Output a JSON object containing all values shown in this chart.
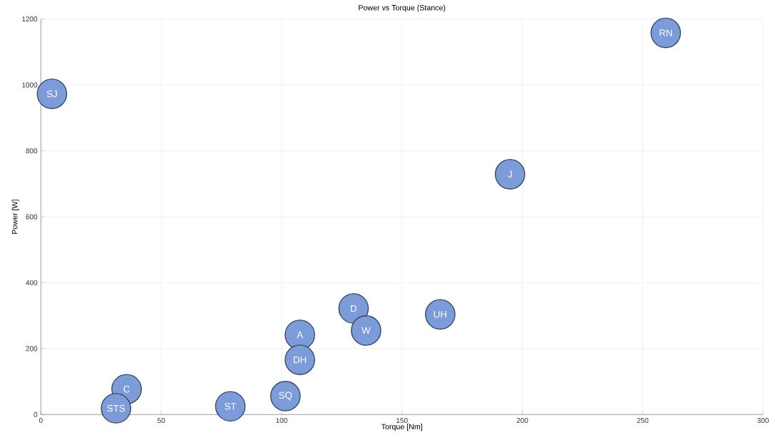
{
  "chart_data": {
    "type": "scatter",
    "title": "Power vs Torque (Stance)",
    "xlabel": "Torque [Nm]",
    "ylabel": "Power [W]",
    "x": [
      4.6,
      35.6,
      31.2,
      78.7,
      101.6,
      107.6,
      107.6,
      129.9,
      135.1,
      165.9,
      194.9,
      259.6
    ],
    "values": [
      973,
      77,
      19,
      25,
      56,
      242,
      166,
      322,
      255,
      304,
      729,
      1158
    ],
    "color": "#7b9bd9",
    "marker": "circle",
    "xlim": [
      0,
      300
    ],
    "ylim": [
      0,
      1200
    ],
    "xticks": [
      0,
      50,
      100,
      150,
      200,
      250,
      300
    ],
    "yticks": [
      0,
      200,
      400,
      600,
      800,
      1000,
      1200
    ],
    "grid": true,
    "annotations": [
      {
        "text": "SJ",
        "x": 4.6,
        "y": 973
      },
      {
        "text": "C",
        "x": 35.6,
        "y": 77
      },
      {
        "text": "STS",
        "x": 31.2,
        "y": 19
      },
      {
        "text": "ST",
        "x": 78.7,
        "y": 25
      },
      {
        "text": "SQ",
        "x": 101.6,
        "y": 56
      },
      {
        "text": "A",
        "x": 107.6,
        "y": 242
      },
      {
        "text": "DH",
        "x": 107.6,
        "y": 166
      },
      {
        "text": "D",
        "x": 129.9,
        "y": 322
      },
      {
        "text": "W",
        "x": 135.1,
        "y": 255
      },
      {
        "text": "UH",
        "x": 165.9,
        "y": 304
      },
      {
        "text": "J",
        "x": 194.9,
        "y": 729
      },
      {
        "text": "RN",
        "x": 259.6,
        "y": 1158
      }
    ]
  }
}
